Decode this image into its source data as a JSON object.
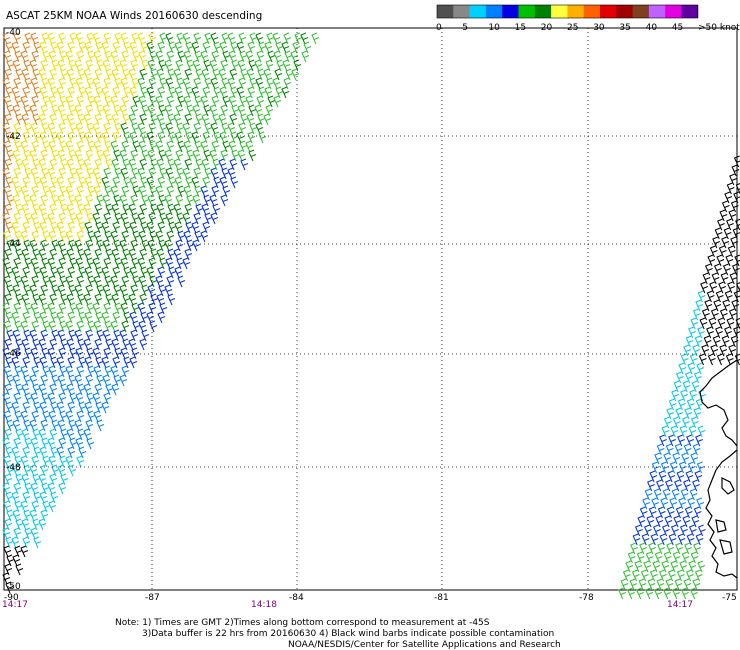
{
  "title": "ASCAT 25KM NOAA Winds 20160630 descending",
  "legend": {
    "colors": [
      "#505050",
      "#888888",
      "#00d0ff",
      "#0080ff",
      "#0000e0",
      "#00c000",
      "#008000",
      "#ffff40",
      "#ffb000",
      "#ff6000",
      "#e00000",
      "#a00000",
      "#804020",
      "#c060ff",
      "#e000e0",
      "#6000a0"
    ],
    "tick_labels": [
      "0",
      "5",
      "10",
      "15",
      "20",
      "25",
      "30",
      "35",
      "40",
      "45",
      ">50 knots"
    ]
  },
  "lat_labels": [
    "-40",
    "-42",
    "-44",
    "-46",
    "-48",
    "-50"
  ],
  "lon_labels": [
    "-90",
    "-87",
    "-84",
    "-81",
    "-78",
    "-75"
  ],
  "time_labels": [
    "14:17",
    "14:18",
    "14:17"
  ],
  "notes": [
    "Note: 1) Times are GMT 2)Times along bottom correspond to measurement at -45S",
    "3)Data buffer is 22 hrs from 20160630 4) Black wind barbs indicate possible contamination",
    "NOAA/NESDIS/Center for Satellite Applications and Research"
  ],
  "barb_colors": {
    "orange": "#e08020",
    "yellow": "#f0e000",
    "light_green": "#30c030",
    "dark_green": "#008000",
    "blue": "#0030e0",
    "mid_blue": "#0080ff",
    "cyan": "#00c8e8",
    "black": "#000000"
  },
  "coast_color": "#000000"
}
